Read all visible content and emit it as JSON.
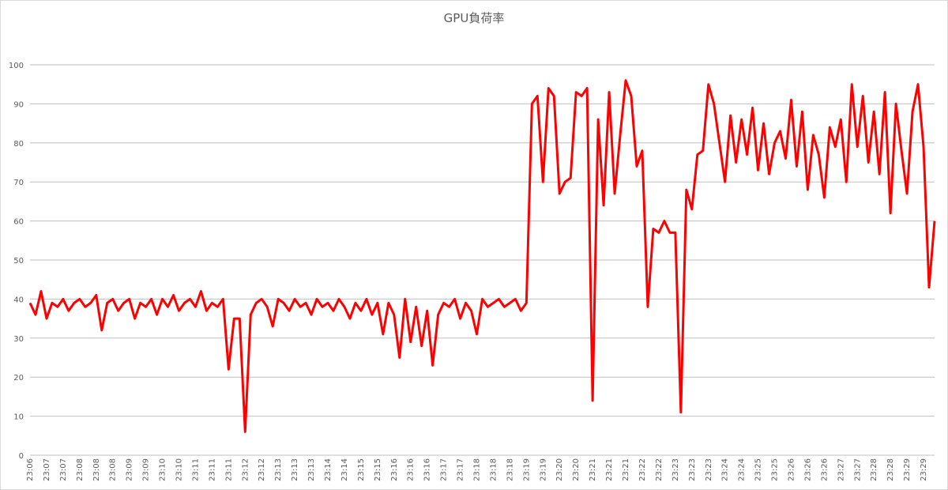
{
  "chart_data": {
    "type": "line",
    "title": "GPU負荷率",
    "categories": [
      "23:06",
      null,
      null,
      "23:07",
      null,
      null,
      "23:07",
      null,
      null,
      "23:08",
      null,
      null,
      "23:08",
      null,
      null,
      "23:08",
      null,
      null,
      "23:09",
      null,
      null,
      "23:09",
      null,
      null,
      "23:10",
      null,
      null,
      "23:10",
      null,
      null,
      "23:11",
      null,
      null,
      "23:11",
      null,
      null,
      "23:11",
      null,
      null,
      "23:12",
      null,
      null,
      "23:12",
      null,
      null,
      "23:13",
      null,
      null,
      "23:13",
      null,
      null,
      "23:13",
      null,
      null,
      "23:14",
      null,
      null,
      "23:14",
      null,
      null,
      "23:15",
      null,
      null,
      "23:15",
      null,
      null,
      "23:16",
      null,
      null,
      "23:16",
      null,
      null,
      "23:16",
      null,
      null,
      "23:17",
      null,
      null,
      "23:17",
      null,
      null,
      "23:18",
      null,
      null,
      "23:18",
      null,
      null,
      "23:18",
      null,
      null,
      "23:19",
      null,
      null,
      "23:19",
      null,
      null,
      "23:20",
      null,
      null,
      "23:20",
      null,
      null,
      "23:21",
      null,
      null,
      "23:21",
      null,
      null,
      "23:21",
      null,
      null,
      "23:22",
      null,
      null,
      "23:22",
      null,
      null,
      "23:23",
      null,
      null,
      "23:23",
      null,
      null,
      "23:23",
      null,
      null,
      "23:24",
      null,
      null,
      "23:24",
      null,
      null,
      "23:25",
      null,
      null,
      "23:25",
      null,
      null,
      "23:26",
      null,
      null,
      "23:26",
      null,
      null,
      "23:26",
      null,
      null,
      "23:27",
      null,
      null,
      "23:27",
      null,
      null,
      "23:28",
      null,
      null,
      "23:28",
      null,
      null,
      "23:29",
      null,
      null,
      "23:29",
      null,
      null
    ],
    "values": [
      39,
      36,
      42,
      35,
      39,
      38,
      40,
      37,
      39,
      40,
      38,
      39,
      41,
      32,
      39,
      40,
      37,
      39,
      40,
      35,
      39,
      38,
      40,
      36,
      40,
      38,
      41,
      37,
      39,
      40,
      38,
      42,
      37,
      39,
      38,
      40,
      22,
      35,
      35,
      6,
      36,
      39,
      40,
      38,
      33,
      40,
      39,
      37,
      40,
      38,
      39,
      36,
      40,
      38,
      39,
      37,
      40,
      38,
      35,
      39,
      37,
      40,
      36,
      39,
      31,
      39,
      36,
      25,
      40,
      29,
      38,
      28,
      37,
      23,
      36,
      39,
      38,
      40,
      35,
      39,
      37,
      31,
      40,
      38,
      39,
      40,
      38,
      39,
      40,
      37,
      39,
      90,
      92,
      70,
      94,
      92,
      67,
      70,
      71,
      93,
      92,
      94,
      14,
      86,
      64,
      93,
      67,
      82,
      96,
      92,
      74,
      78,
      38,
      58,
      57,
      60,
      57,
      57,
      11,
      68,
      63,
      77,
      78,
      95,
      90,
      80,
      70,
      87,
      75,
      86,
      77,
      89,
      73,
      85,
      72,
      80,
      83,
      76,
      91,
      74,
      88,
      68,
      82,
      77,
      66,
      84,
      79,
      86,
      70,
      95,
      79,
      92,
      75,
      88,
      72,
      93,
      62,
      90,
      78,
      67,
      88,
      95,
      79,
      43,
      60
    ],
    "color": "#ff0000",
    "ylim": [
      0,
      100
    ],
    "yticks": [
      0,
      10,
      20,
      30,
      40,
      50,
      60,
      70,
      80,
      90,
      100
    ],
    "grid": true
  }
}
